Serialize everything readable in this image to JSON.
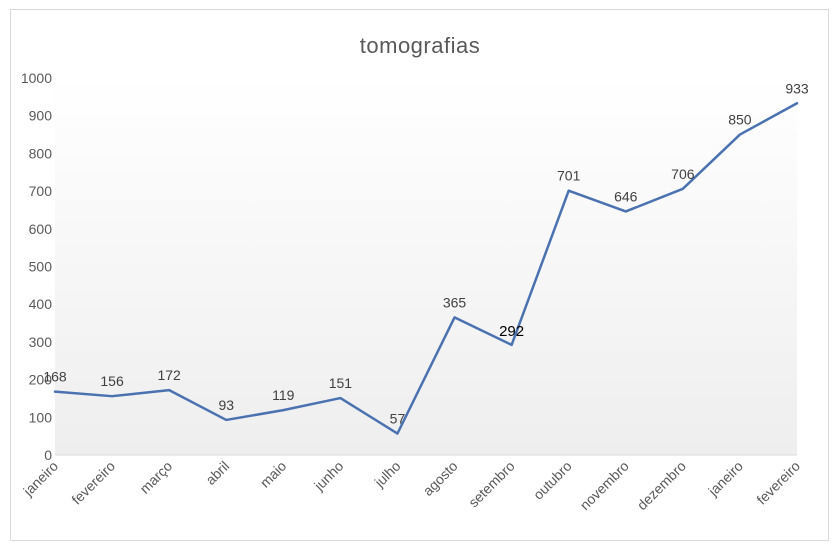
{
  "chart_data": {
    "type": "line",
    "title": "tomografias",
    "xlabel": "",
    "ylabel": "",
    "categories": [
      "janeiro",
      "fevereiro",
      "março",
      "abril",
      "maio",
      "junho",
      "julho",
      "agosto",
      "setembro",
      "outubro",
      "novembro",
      "dezembro",
      "janeiro",
      "fevereiro"
    ],
    "series": [
      {
        "values": [
          168,
          156,
          172,
          93,
          119,
          151,
          57,
          365,
          292,
          701,
          646,
          706,
          850,
          933
        ],
        "color": "#4a72b0"
      }
    ],
    "ylim": [
      0,
      1000
    ],
    "yticks": [
      0,
      100,
      200,
      300,
      400,
      500,
      600,
      700,
      800,
      900,
      1000
    ],
    "grid": false,
    "legend": "none",
    "plot_background": "gradient white to light gray"
  }
}
